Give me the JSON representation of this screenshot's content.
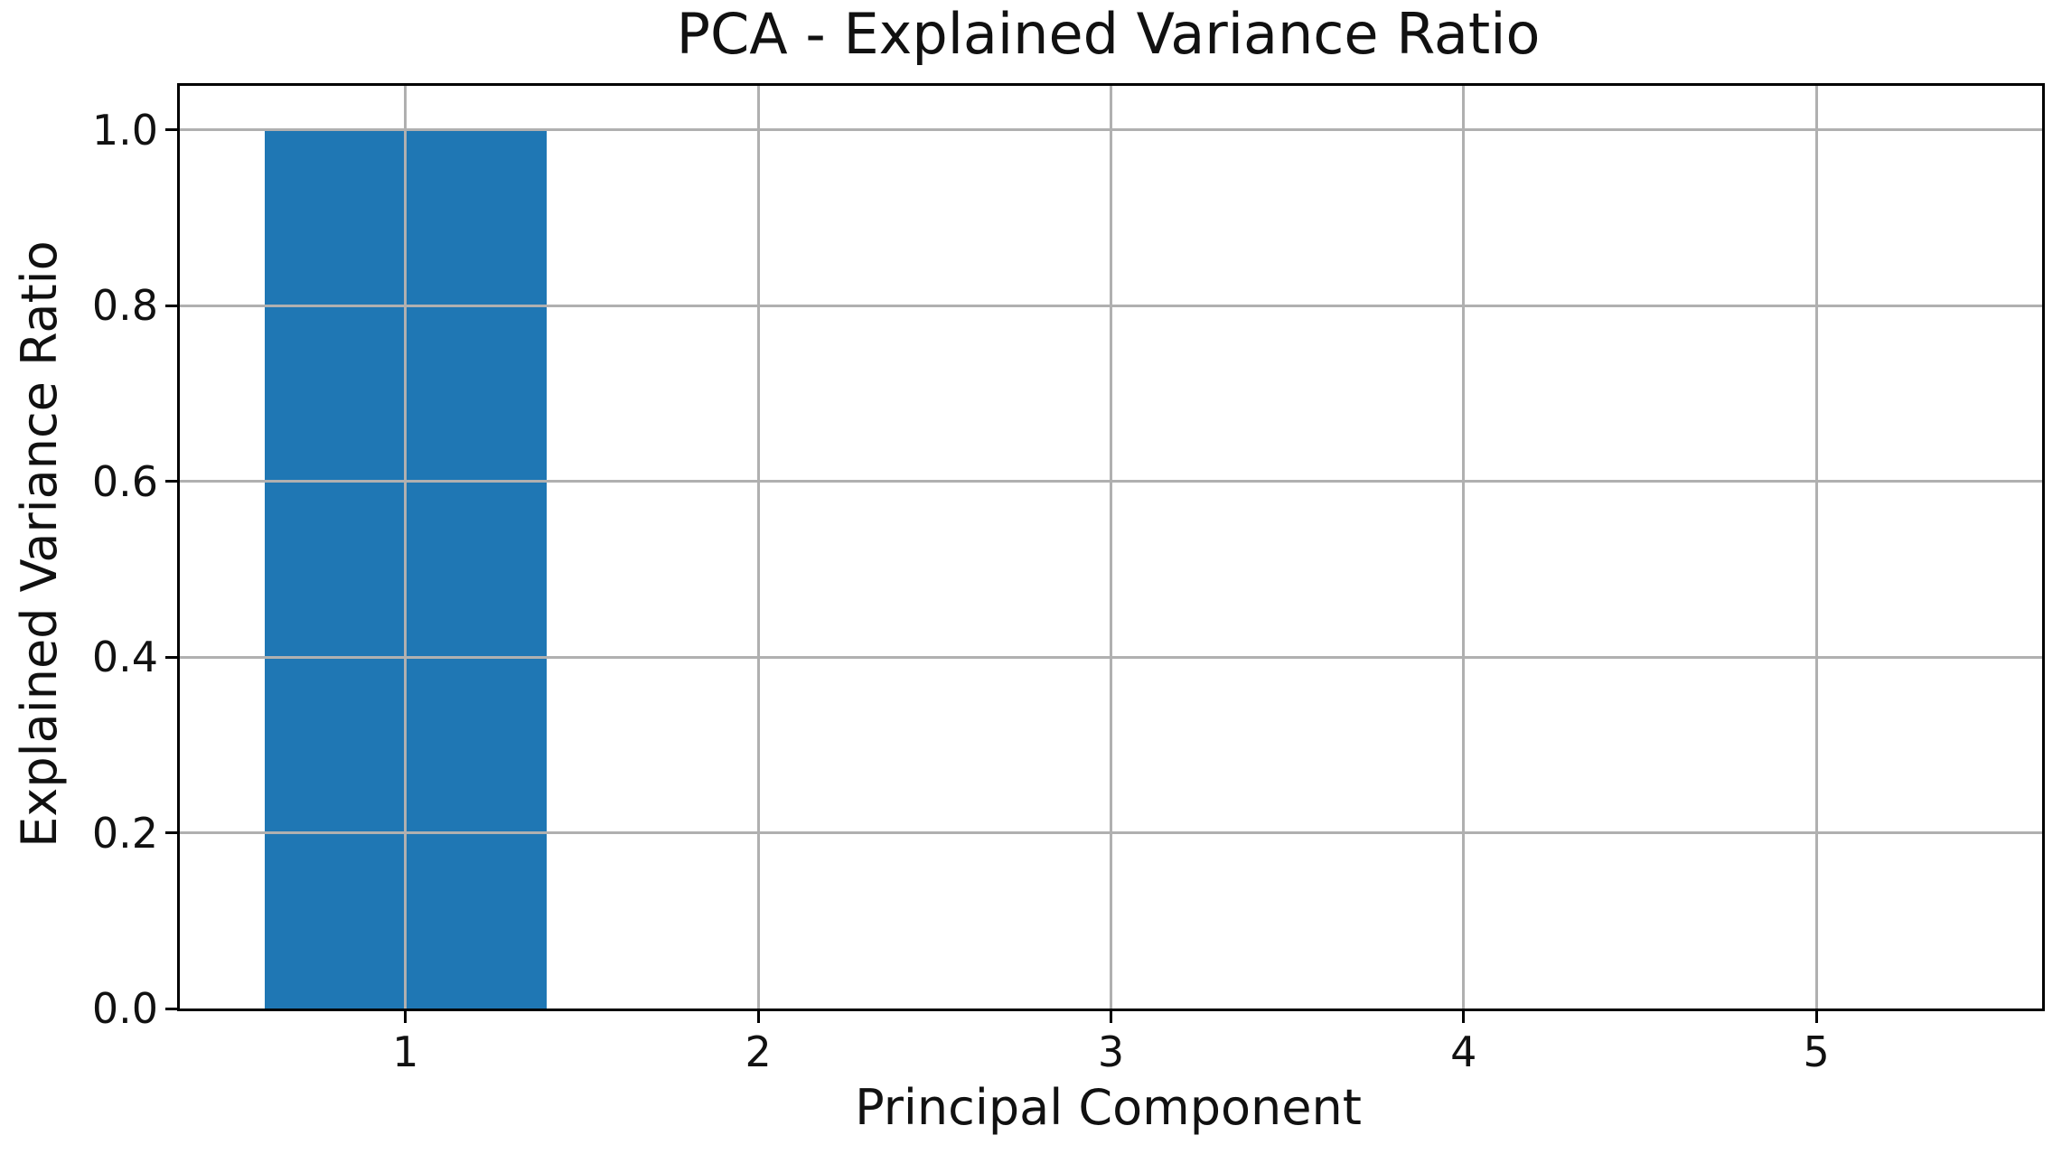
{
  "chart_data": {
    "type": "bar",
    "title": "PCA - Explained Variance Ratio",
    "xlabel": "Principal Component",
    "ylabel": "Explained Variance Ratio",
    "categories": [
      1,
      2,
      3,
      4,
      5
    ],
    "values": [
      1.0,
      0.0,
      0.0,
      0.0,
      0.0
    ],
    "bar_width": 0.8,
    "xlim": [
      0.36,
      5.64
    ],
    "ylim": [
      0.0,
      1.05
    ],
    "xticks": [
      {
        "value": 1,
        "label": "1"
      },
      {
        "value": 2,
        "label": "2"
      },
      {
        "value": 3,
        "label": "3"
      },
      {
        "value": 4,
        "label": "4"
      },
      {
        "value": 5,
        "label": "5"
      }
    ],
    "yticks": [
      {
        "value": 0.0,
        "label": "0.0"
      },
      {
        "value": 0.2,
        "label": "0.2"
      },
      {
        "value": 0.4,
        "label": "0.4"
      },
      {
        "value": 0.6,
        "label": "0.6"
      },
      {
        "value": 0.8,
        "label": "0.8"
      },
      {
        "value": 1.0,
        "label": "1.0"
      }
    ],
    "grid": true,
    "grid_over_bars": true,
    "colors": {
      "bar": "#1f77b4",
      "grid": "#b0b0b0",
      "spine": "#000000",
      "text": "#111111",
      "background": "#ffffff"
    },
    "legend": null
  }
}
